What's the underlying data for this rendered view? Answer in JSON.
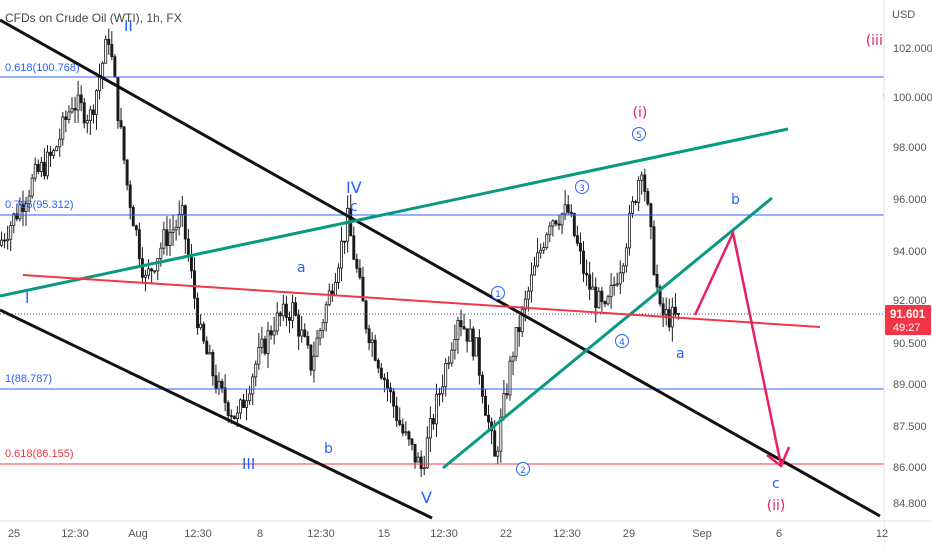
{
  "header": {
    "title": "CFDs on Crude Oil (WTI), 1h, FX"
  },
  "price_axis": {
    "currency": "USD",
    "ticks": [
      "102.000",
      "100.000",
      "98.000",
      "96.000",
      "94.000",
      "92.000",
      "90.500",
      "89.000",
      "87.500",
      "86.000",
      "84.800"
    ],
    "last_price": "91.601",
    "countdown": "49:27"
  },
  "time_axis": {
    "ticks": [
      "25",
      "12:30",
      "Aug",
      "12:30",
      "8",
      "12:30",
      "15",
      "12:30",
      "22",
      "12:30",
      "29",
      "Sep",
      "6",
      "12"
    ]
  },
  "fib_levels": [
    {
      "label": "0.618(100.768)",
      "color": "#2962ff"
    },
    {
      "label": "0.786(95.312)",
      "color": "#2962ff"
    },
    {
      "label": "1(88.787)",
      "color": "#2962ff"
    },
    {
      "label": "0.618(86.155)",
      "color": "#f23645"
    }
  ],
  "wave_labels": {
    "II": "II",
    "I": "I",
    "III": "III",
    "IV": "IV",
    "V": "V",
    "a1": "a",
    "b1": "b",
    "c1": "c",
    "a2": "a",
    "b2": "b",
    "c2": "c",
    "w1": "1",
    "w2": "2",
    "w3": "3",
    "w4": "4",
    "w5": "5",
    "i": "(i)",
    "ii": "(ii)",
    "iii": "(iii)"
  },
  "colors": {
    "blue_label": "#2962ff",
    "pink": "#e91e63",
    "red_line": "#f23645",
    "teal": "#089981",
    "black": "#111111",
    "candle": "#1a1a1a"
  },
  "chart_data": {
    "type": "candlestick",
    "x_range": [
      "Jul 25",
      "Sep 12"
    ],
    "y_range": [
      84.3,
      103.2
    ],
    "y_unit": "USD",
    "price_path": [
      [
        "Jul 25",
        94.3
      ],
      [
        "Jul 26",
        95.5
      ],
      [
        "Jul 27",
        96.8
      ],
      [
        "Jul 28",
        97.6
      ],
      [
        "Jul 29",
        99.5
      ],
      [
        "Jul 30",
        99.0
      ],
      [
        "Aug 1",
        101.9
      ],
      [
        "Aug 2",
        96.5
      ],
      [
        "Aug 3",
        93.0
      ],
      [
        "Aug 4",
        94.5
      ],
      [
        "Aug 5",
        95.3
      ],
      [
        "Aug 6",
        91.0
      ],
      [
        "Aug 7",
        89.0
      ],
      [
        "Aug 8",
        88.0
      ],
      [
        "Aug 9",
        90.0
      ],
      [
        "Aug 10",
        91.5
      ],
      [
        "Aug 11",
        92.0
      ],
      [
        "Aug 12",
        90.0
      ],
      [
        "Aug 13",
        92.5
      ],
      [
        "Aug 14",
        95.2
      ],
      [
        "Aug 15",
        91.5
      ],
      [
        "Aug 16",
        89.5
      ],
      [
        "Aug 17",
        87.5
      ],
      [
        "Aug 18",
        86.2
      ],
      [
        "Aug 19",
        89.0
      ],
      [
        "Aug 20",
        91.8
      ],
      [
        "Aug 21",
        90.5
      ],
      [
        "Aug 22",
        86.5
      ],
      [
        "Aug 23",
        90.5
      ],
      [
        "Aug 24",
        93.0
      ],
      [
        "Aug 25",
        95.3
      ],
      [
        "Aug 26",
        95.5
      ],
      [
        "Aug 27",
        93.0
      ],
      [
        "Aug 28",
        91.8
      ],
      [
        "Aug 29",
        94.0
      ],
      [
        "Aug 30",
        97.3
      ],
      [
        "Aug 31",
        91.8
      ],
      [
        "Sep 1",
        91.6
      ]
    ],
    "last_price": 91.601,
    "fib_levels": [
      {
        "ratio": 0.618,
        "price": 100.768
      },
      {
        "ratio": 0.786,
        "price": 95.312
      },
      {
        "ratio": 1,
        "price": 88.787
      },
      {
        "ratio": 0.618,
        "price": 86.155
      }
    ],
    "projection": [
      [
        "Sep 1",
        91.8
      ],
      [
        "Sep 3",
        94.7
      ],
      [
        "Sep 6",
        86.2
      ]
    ]
  }
}
